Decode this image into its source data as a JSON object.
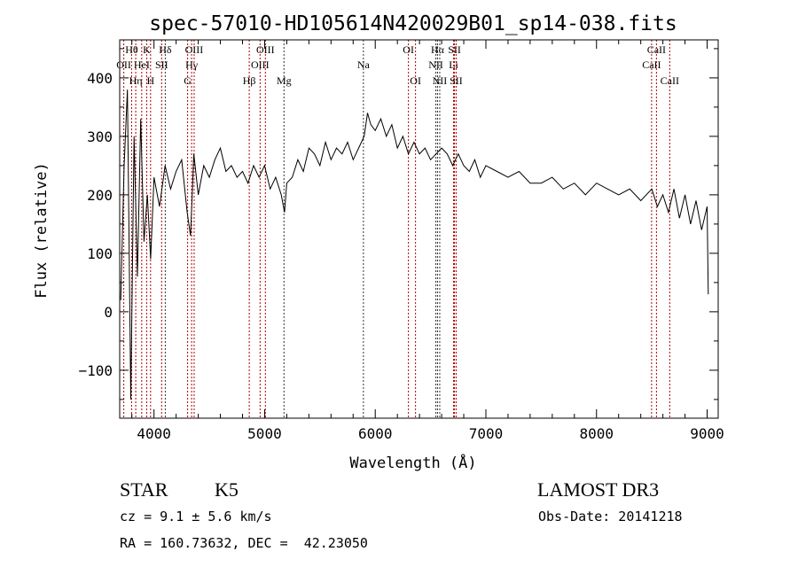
{
  "chart_data": {
    "type": "line",
    "title": "spec-57010-HD105614N420029B01_sp14-038.fits",
    "xlabel": "Wavelength (Å)",
    "ylabel": "Flux (relative)",
    "xlim": [
      3690,
      9100
    ],
    "ylim": [
      -182,
      465
    ],
    "xticks": [
      4000,
      5000,
      6000,
      7000,
      8000,
      9000
    ],
    "xtick_labels": [
      "4000",
      "5000",
      "6000",
      "7000",
      "8000",
      "9000"
    ],
    "yticks": [
      -100,
      0,
      100,
      200,
      300,
      400
    ],
    "ytick_labels": [
      "−100",
      "0",
      "100",
      "200",
      "300",
      "400"
    ],
    "grid": false,
    "series": [
      {
        "name": "flux",
        "x": [
          3700,
          3730,
          3760,
          3790,
          3820,
          3850,
          3880,
          3910,
          3940,
          3970,
          4000,
          4050,
          4100,
          4150,
          4200,
          4250,
          4300,
          4330,
          4360,
          4400,
          4450,
          4500,
          4550,
          4600,
          4650,
          4700,
          4750,
          4800,
          4850,
          4900,
          4950,
          5000,
          5050,
          5100,
          5150,
          5180,
          5200,
          5250,
          5300,
          5350,
          5400,
          5450,
          5500,
          5550,
          5600,
          5650,
          5700,
          5750,
          5800,
          5850,
          5900,
          5930,
          5960,
          6000,
          6050,
          6100,
          6150,
          6200,
          6250,
          6300,
          6350,
          6400,
          6450,
          6500,
          6550,
          6600,
          6650,
          6700,
          6750,
          6800,
          6850,
          6900,
          6950,
          7000,
          7100,
          7200,
          7300,
          7400,
          7500,
          7600,
          7700,
          7800,
          7900,
          8000,
          8100,
          8200,
          8300,
          8400,
          8500,
          8550,
          8600,
          8650,
          8700,
          8750,
          8800,
          8850,
          8900,
          8950,
          9000,
          9010
        ],
        "y": [
          20,
          250,
          380,
          -150,
          300,
          60,
          330,
          120,
          200,
          90,
          230,
          180,
          250,
          210,
          240,
          260,
          170,
          130,
          270,
          200,
          250,
          230,
          260,
          280,
          240,
          250,
          230,
          240,
          220,
          250,
          230,
          250,
          210,
          230,
          200,
          170,
          220,
          230,
          260,
          240,
          280,
          270,
          250,
          290,
          260,
          280,
          270,
          290,
          260,
          280,
          300,
          340,
          320,
          310,
          330,
          300,
          320,
          280,
          300,
          270,
          290,
          270,
          280,
          260,
          270,
          280,
          270,
          250,
          270,
          250,
          240,
          260,
          230,
          250,
          240,
          230,
          240,
          220,
          220,
          230,
          210,
          220,
          200,
          220,
          210,
          200,
          210,
          190,
          210,
          180,
          200,
          170,
          210,
          160,
          200,
          150,
          190,
          140,
          180,
          30
        ]
      }
    ],
    "lines": [
      {
        "name": "OII",
        "w": 3727,
        "color": "#b00000"
      },
      {
        "name": "Hθ",
        "w": 3798,
        "color": "#b00000"
      },
      {
        "name": "Hη",
        "w": 3835,
        "color": "#b00000"
      },
      {
        "name": "HeI",
        "w": 3889,
        "color": "#b00000"
      },
      {
        "name": "K",
        "w": 3934,
        "color": "#b00000"
      },
      {
        "name": "H",
        "w": 3969,
        "color": "#b00000"
      },
      {
        "name": "SII",
        "w": 4069,
        "color": "#b00000"
      },
      {
        "name": "Hδ",
        "w": 4102,
        "color": "#333333"
      },
      {
        "name": "G",
        "w": 4304,
        "color": "#b00000"
      },
      {
        "name": "Hγ",
        "w": 4340,
        "color": "#b00000"
      },
      {
        "name": "OIII",
        "w": 4363,
        "color": "#b00000"
      },
      {
        "name": "Hβ",
        "w": 4861,
        "color": "#b00000"
      },
      {
        "name": "OIII",
        "w": 4959,
        "color": "#b00000"
      },
      {
        "name": "OIII",
        "w": 5007,
        "color": "#b00000"
      },
      {
        "name": "Mg",
        "w": 5175,
        "color": "#333333"
      },
      {
        "name": "Na",
        "w": 5893,
        "color": "#333333"
      },
      {
        "name": "OI",
        "w": 6300,
        "color": "#b00000"
      },
      {
        "name": "OI",
        "w": 6364,
        "color": "#b00000"
      },
      {
        "name": "NII",
        "w": 6548,
        "color": "#333333"
      },
      {
        "name": "Hα",
        "w": 6563,
        "color": "#333333"
      },
      {
        "name": "NII",
        "w": 6583,
        "color": "#333333"
      },
      {
        "name": "Li",
        "w": 6708,
        "color": "#b00000"
      },
      {
        "name": "SII",
        "w": 6716,
        "color": "#b00000"
      },
      {
        "name": "SII",
        "w": 6731,
        "color": "#b00000"
      },
      {
        "name": "CaII",
        "w": 8498,
        "color": "#b00000"
      },
      {
        "name": "CaII",
        "w": 8542,
        "color": "#b00000"
      },
      {
        "name": "CaII",
        "w": 8662,
        "color": "#b00000"
      }
    ]
  },
  "info": {
    "object_class": "STAR",
    "subclass": "K5",
    "survey": "LAMOST DR3",
    "cz": "cz = 9.1 ± 5.6 km/s",
    "obs_date": "Obs-Date: 20141218",
    "coords": "RA = 160.73632, DEC =  42.23050"
  }
}
